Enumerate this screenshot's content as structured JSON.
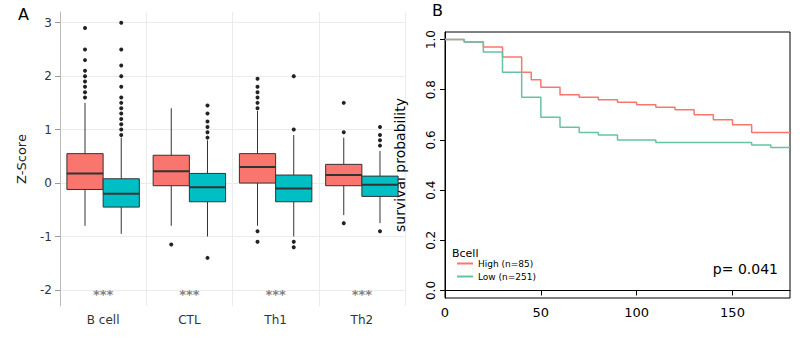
{
  "chart_data": [
    {
      "type": "boxplot",
      "panel_label": "A",
      "ylabel": "Z-Score",
      "categories": [
        "B cell",
        "CTL",
        "Th1",
        "Th2"
      ],
      "ylim": [
        -2.3,
        3.2
      ],
      "yticks": [
        -2,
        -1,
        0,
        1,
        2,
        3
      ],
      "grid": true,
      "significance": [
        "***",
        "***",
        "***",
        "***"
      ],
      "series": [
        {
          "color": "#F8766D",
          "boxes": [
            [
              -0.8,
              -0.12,
              0.18,
              0.55,
              1.5
            ],
            [
              -0.8,
              -0.05,
              0.22,
              0.52,
              1.4
            ],
            [
              -0.8,
              0.0,
              0.3,
              0.55,
              1.35
            ],
            [
              -0.6,
              -0.05,
              0.15,
              0.35,
              0.85
            ]
          ],
          "outliers": [
            [
              1.6,
              1.7,
              1.8,
              1.9,
              2.0,
              2.1,
              2.3,
              2.5,
              2.9
            ],
            [
              -1.15
            ],
            [
              1.4,
              1.5,
              1.6,
              1.7,
              1.8,
              1.95,
              -0.9,
              -1.1
            ],
            [
              0.95,
              1.5,
              -0.75
            ]
          ]
        },
        {
          "color": "#00BFC4",
          "boxes": [
            [
              -0.95,
              -0.45,
              -0.2,
              0.08,
              0.85
            ],
            [
              -1.0,
              -0.35,
              -0.08,
              0.18,
              0.8
            ],
            [
              -1.0,
              -0.35,
              -0.1,
              0.15,
              0.9
            ],
            [
              -0.75,
              -0.25,
              -0.03,
              0.13,
              0.6
            ]
          ],
          "outliers": [
            [
              0.9,
              1.0,
              1.1,
              1.2,
              1.3,
              1.4,
              1.5,
              1.6,
              1.8,
              2.0,
              2.2,
              2.5,
              3.0
            ],
            [
              0.85,
              0.95,
              1.05,
              1.15,
              1.3,
              1.45,
              -1.4
            ],
            [
              1.0,
              2.0,
              -1.1,
              -1.2
            ],
            [
              0.7,
              0.8,
              0.9,
              1.05,
              -0.9
            ]
          ]
        }
      ]
    },
    {
      "type": "line",
      "panel_label": "B",
      "ylabel": "survival probability",
      "xlim": [
        0,
        180
      ],
      "xticks": [
        0,
        50,
        100,
        150
      ],
      "ylim": [
        -0.03,
        1.03
      ],
      "yticks": [
        {
          "value": 0,
          "label": "0.0"
        },
        0.2,
        0.4,
        0.6,
        0.8,
        {
          "value": 1,
          "label": "1.0"
        }
      ],
      "grid": false,
      "line_style": "step",
      "legend": "bottomleft",
      "legend_title": "Bcell",
      "annotation": "p= 0.041",
      "series": [
        {
          "name": "High (n=85)",
          "color": "#F8766D",
          "x": [
            0,
            10,
            20,
            30,
            40,
            45,
            50,
            60,
            70,
            80,
            90,
            100,
            110,
            120,
            130,
            140,
            150,
            160,
            180
          ],
          "values": [
            1.0,
            0.99,
            0.97,
            0.93,
            0.87,
            0.84,
            0.81,
            0.78,
            0.77,
            0.76,
            0.75,
            0.74,
            0.73,
            0.72,
            0.7,
            0.68,
            0.66,
            0.63,
            0.63
          ]
        },
        {
          "name": "Low (n=251)",
          "color": "#66C2A5",
          "x": [
            0,
            10,
            20,
            30,
            40,
            50,
            60,
            70,
            80,
            90,
            100,
            110,
            120,
            140,
            150,
            160,
            170,
            180
          ],
          "values": [
            1.0,
            0.99,
            0.95,
            0.87,
            0.77,
            0.69,
            0.65,
            0.63,
            0.62,
            0.6,
            0.6,
            0.59,
            0.59,
            0.59,
            0.59,
            0.58,
            0.57,
            0.57
          ]
        }
      ]
    }
  ]
}
